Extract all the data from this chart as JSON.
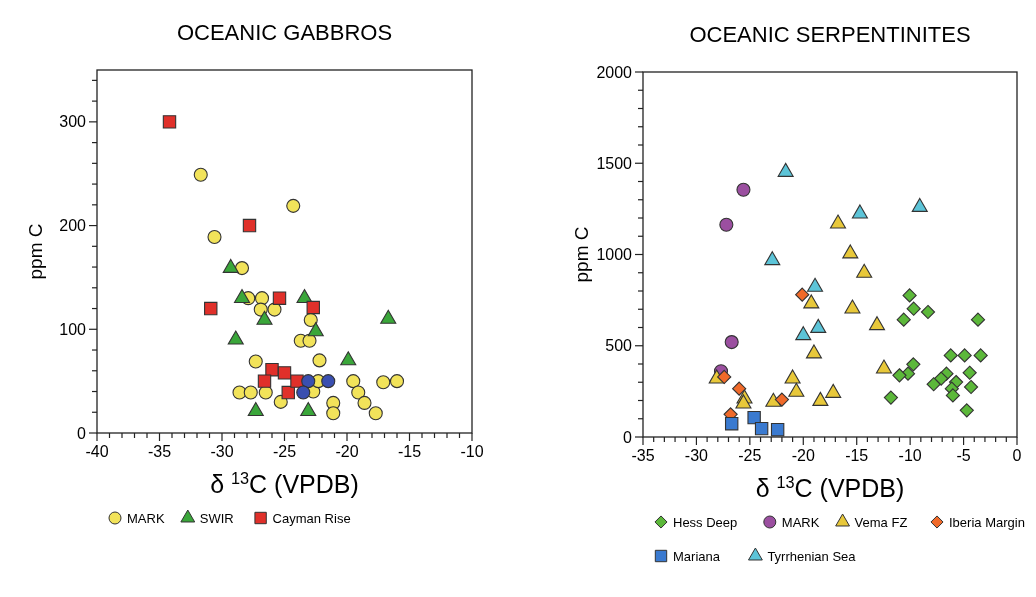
{
  "chart_data": [
    {
      "type": "scatter",
      "title": "OCEANIC GABBROS",
      "xlabel": "δ $^{13}$C (VPDB)",
      "ylabel": "ppm C",
      "xlim": [
        -40,
        -10
      ],
      "ylim": [
        0,
        350
      ],
      "xticks": [
        -40,
        {
          "value": -39,
          "label": null
        },
        {
          "value": -38,
          "label": null
        },
        {
          "value": -37,
          "label": null
        },
        {
          "value": -36,
          "label": null
        },
        -35,
        {
          "value": -34,
          "label": null
        },
        {
          "value": -33,
          "label": null
        },
        {
          "value": -32,
          "label": null
        },
        {
          "value": -31,
          "label": null
        },
        -30,
        {
          "value": -29,
          "label": null
        },
        {
          "value": -28,
          "label": null
        },
        {
          "value": -27,
          "label": null
        },
        {
          "value": -26,
          "label": null
        },
        -25,
        {
          "value": -24,
          "label": null
        },
        {
          "value": -23,
          "label": null
        },
        {
          "value": -22,
          "label": null
        },
        {
          "value": -21,
          "label": null
        },
        -20,
        {
          "value": -19,
          "label": null
        },
        {
          "value": -18,
          "label": null
        },
        {
          "value": -17,
          "label": null
        },
        {
          "value": -16,
          "label": null
        },
        -15,
        {
          "value": -14,
          "label": null
        },
        {
          "value": -13,
          "label": null
        },
        {
          "value": -12,
          "label": null
        },
        {
          "value": -11,
          "label": null
        },
        -10
      ],
      "yticks": [
        0,
        {
          "value": 20,
          "label": null
        },
        {
          "value": 40,
          "label": null
        },
        {
          "value": 60,
          "label": null
        },
        {
          "value": 80,
          "label": null
        },
        100,
        {
          "value": 120,
          "label": null
        },
        {
          "value": 140,
          "label": null
        },
        {
          "value": 160,
          "label": null
        },
        {
          "value": 180,
          "label": null
        },
        200,
        {
          "value": 220,
          "label": null
        },
        {
          "value": 240,
          "label": null
        },
        {
          "value": 260,
          "label": null
        },
        {
          "value": 280,
          "label": null
        },
        300,
        {
          "value": 320,
          "label": null
        },
        {
          "value": 340,
          "label": null
        }
      ],
      "legend": "bottom",
      "series": [
        {
          "name": "MARK",
          "color": "#f2e35a",
          "marker": "circle",
          "x": [
            -31.7,
            -24.3,
            -30.6,
            -28.4,
            -27.9,
            -26.8,
            -26.9,
            -25.8,
            -22.9,
            -23.7,
            -23.0,
            -27.3,
            -22.2,
            -28.6,
            -27.7,
            -26.5,
            -25.3,
            -22.7,
            -22.3,
            -19.5,
            -19.1,
            -18.6,
            -21.1,
            -21.1,
            -17.7,
            -17.1,
            -16.0
          ],
          "values": [
            249,
            219,
            189,
            159,
            130,
            130,
            119,
            119,
            109,
            89,
            89,
            69,
            70,
            39,
            39,
            39,
            30,
            40,
            50,
            50,
            39,
            29,
            29,
            19,
            19,
            49,
            50
          ]
        },
        {
          "name": "SWIR",
          "color": "#3aa63a",
          "marker": "triangle",
          "x": [
            -29.3,
            -28.4,
            -26.6,
            -28.9,
            -23.4,
            -22.5,
            -16.7,
            -19.9,
            -27.3,
            -23.1
          ],
          "values": [
            159,
            130,
            109,
            90,
            130,
            98,
            110,
            70,
            21,
            21
          ]
        },
        {
          "name": "Cayman Rise",
          "color": "#e0302a",
          "marker": "square",
          "x": [
            -34.2,
            -27.8,
            -30.9,
            -25.4,
            -22.7,
            -26.0,
            -25.0,
            -26.6,
            -24.7,
            -24.0
          ],
          "values": [
            300,
            200,
            120,
            130,
            121,
            61,
            58,
            50,
            39,
            50
          ]
        },
        {
          "color": "#3a4fb0",
          "marker": "circle",
          "x": [
            -23.1,
            -21.5,
            -23.5
          ],
          "values": [
            50,
            50,
            39
          ]
        }
      ]
    },
    {
      "type": "scatter",
      "title": "OCEANIC SERPENTINITES",
      "xlabel": "δ $^{13}$C (VPDB)",
      "ylabel": "ppm C",
      "xlim": [
        -35,
        0
      ],
      "ylim": [
        0,
        2000
      ],
      "xticks": [
        -35,
        {
          "value": -34,
          "label": null
        },
        {
          "value": -33,
          "label": null
        },
        {
          "value": -32,
          "label": null
        },
        {
          "value": -31,
          "label": null
        },
        -30,
        {
          "value": -29,
          "label": null
        },
        {
          "value": -28,
          "label": null
        },
        {
          "value": -27,
          "label": null
        },
        {
          "value": -26,
          "label": null
        },
        -25,
        {
          "value": -24,
          "label": null
        },
        {
          "value": -23,
          "label": null
        },
        {
          "value": -22,
          "label": null
        },
        {
          "value": -21,
          "label": null
        },
        -20,
        {
          "value": -19,
          "label": null
        },
        {
          "value": -18,
          "label": null
        },
        {
          "value": -17,
          "label": null
        },
        {
          "value": -16,
          "label": null
        },
        -15,
        {
          "value": -14,
          "label": null
        },
        {
          "value": -13,
          "label": null
        },
        {
          "value": -12,
          "label": null
        },
        {
          "value": -11,
          "label": null
        },
        -10,
        {
          "value": -9,
          "label": null
        },
        {
          "value": -8,
          "label": null
        },
        {
          "value": -7,
          "label": null
        },
        {
          "value": -6,
          "label": null
        },
        -5,
        {
          "value": -4,
          "label": null
        },
        {
          "value": -3,
          "label": null
        },
        {
          "value": -2,
          "label": null
        },
        {
          "value": -1,
          "label": null
        },
        0
      ],
      "yticks": [
        0,
        {
          "value": 100,
          "label": null
        },
        {
          "value": 200,
          "label": null
        },
        {
          "value": 300,
          "label": null
        },
        {
          "value": 400,
          "label": null
        },
        500,
        {
          "value": 600,
          "label": null
        },
        {
          "value": 700,
          "label": null
        },
        {
          "value": 800,
          "label": null
        },
        {
          "value": 900,
          "label": null
        },
        1000,
        {
          "value": 1100,
          "label": null
        },
        {
          "value": 1200,
          "label": null
        },
        {
          "value": 1300,
          "label": null
        },
        {
          "value": 1400,
          "label": null
        },
        1500,
        {
          "value": 1600,
          "label": null
        },
        {
          "value": 1700,
          "label": null
        },
        {
          "value": 1800,
          "label": null
        },
        {
          "value": 1900,
          "label": null
        },
        2000
      ],
      "legend": "bottom",
      "series": [
        {
          "name": "Hess Deep",
          "color": "#5cb83a",
          "marker": "diamond",
          "x": [
            -10.05,
            -9.67,
            -10.6,
            -8.33,
            -3.65,
            -6.2,
            -4.9,
            -3.4,
            -9.7,
            -10.2,
            -11.0,
            -4.43,
            -6.6,
            -7.1,
            -7.8,
            -5.7,
            -6.1,
            -6.0,
            -4.3,
            -11.8,
            -4.7
          ],
          "values": [
            776,
            703,
            643,
            685,
            643,
            447,
            447,
            447,
            398,
            347,
            338,
            352,
            347,
            320,
            289,
            301,
            265,
            228,
            274,
            216,
            146
          ]
        },
        {
          "name": "MARK",
          "color": "#9b4fa0",
          "marker": "circle",
          "x": [
            -25.6,
            -27.2,
            -26.7,
            -27.7
          ],
          "values": [
            1355,
            1163,
            520,
            360
          ]
        },
        {
          "name": "Vema FZ",
          "color": "#e8c83a",
          "marker": "triangle",
          "x": [
            -16.75,
            -15.6,
            -14.3,
            -15.4,
            -19.25,
            -13.1,
            -19.0,
            -21.0,
            -20.65,
            -17.2,
            -18.4,
            -12.45,
            -28.1,
            -25.5,
            -25.6,
            -22.8
          ],
          "values": [
            1169,
            1005,
            899,
            703,
            731,
            612,
            457,
            320,
            247,
            241,
            197,
            374,
            320,
            210,
            183,
            192
          ]
        },
        {
          "name": "Iberia Margin",
          "color": "#f06a2a",
          "marker": "diamond",
          "x": [
            -20.1,
            -27.4,
            -26.0,
            -26.8,
            -22.0
          ],
          "values": [
            780,
            329,
            265,
            124,
            205
          ]
        },
        {
          "name": "Mariana",
          "color": "#3a7ad0",
          "marker": "square",
          "x": [
            -26.7,
            -24.6,
            -23.9,
            -22.4
          ],
          "values": [
            73,
            106,
            46,
            40
          ]
        },
        {
          "name": "Tyrrhenian Sea",
          "color": "#5cc4d8",
          "marker": "triangle",
          "x": [
            -21.65,
            -14.7,
            -9.1,
            -22.9,
            -18.9,
            -20.0,
            -18.6
          ],
          "values": [
            1452,
            1224,
            1260,
            968,
            822,
            557,
            597
          ]
        }
      ]
    }
  ]
}
